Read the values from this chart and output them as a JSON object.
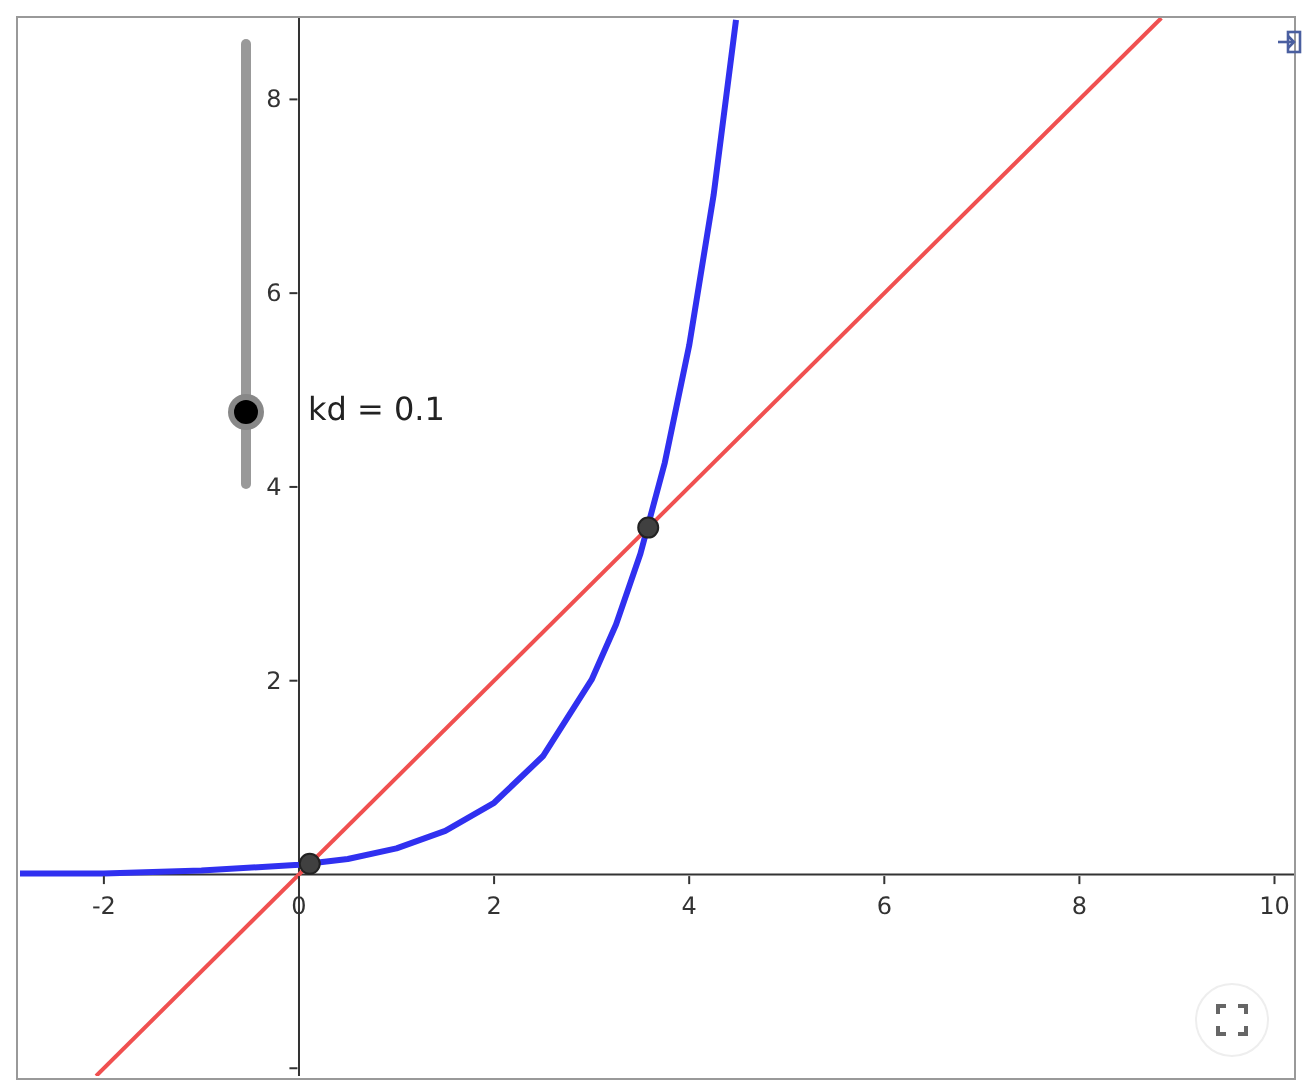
{
  "chart_data": {
    "type": "line",
    "xlim": [
      -2.86,
      10.2
    ],
    "ylim": [
      -2.08,
      8.84
    ],
    "xticks": [
      -2,
      0,
      2,
      4,
      6,
      8,
      10
    ],
    "yticks": [
      {
        "value": -2,
        "label": null
      },
      2,
      4,
      6,
      8
    ],
    "grid": false,
    "legend": false,
    "marker": "none",
    "annotations": [
      "kd = 0.1"
    ],
    "series": [
      {
        "type": "line",
        "color": "#f05050",
        "x": [
          -2.08,
          8.84
        ],
        "values": [
          -2.08,
          8.84
        ]
      },
      {
        "type": "line",
        "color": "#3030f0",
        "x": [
          -2.86,
          -2,
          -1,
          0,
          0.5,
          1,
          1.5,
          2,
          2.5,
          3,
          3.25,
          3.5,
          3.75,
          4,
          4.25,
          4.48
        ],
        "values": [
          0.01,
          0.01,
          0.04,
          0.1,
          0.16,
          0.27,
          0.45,
          0.74,
          1.22,
          2.01,
          2.58,
          3.31,
          4.25,
          5.46,
          7.01,
          8.82
        ]
      },
      {
        "type": "scatter",
        "color": "#404040",
        "marker": "circle",
        "x": [
          0.11,
          3.58
        ],
        "values": [
          0.11,
          3.58
        ]
      }
    ]
  }
}
